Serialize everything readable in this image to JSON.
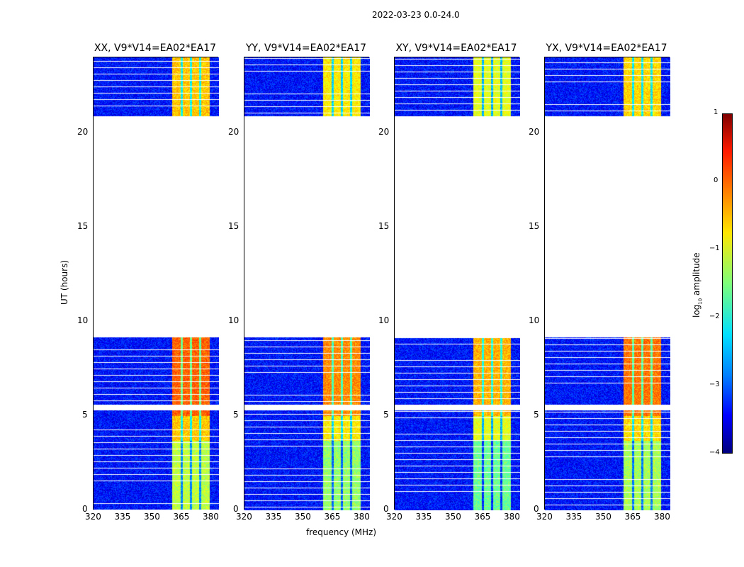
{
  "chart_data": {
    "type": "heatmap",
    "suptitle": "2022-03-23 0.0-24.0",
    "xlabel": "frequency (MHz)",
    "ylabel": "UT (hours)",
    "xlim": [
      320,
      384
    ],
    "ylim": [
      0,
      24
    ],
    "xticks": [
      "320",
      "335",
      "350",
      "365",
      "380"
    ],
    "yticks": [
      "0",
      "5",
      "10",
      "15",
      "20"
    ],
    "panels": [
      {
        "title": "XX, V9*V14=EA02*EA17",
        "band_level": -0.6
      },
      {
        "title": "YY, V9*V14=EA02*EA17",
        "band_level": -0.8
      },
      {
        "title": "XY, V9*V14=EA02*EA17",
        "band_level": -1.0
      },
      {
        "title": "YX, V9*V14=EA02*EA17",
        "band_level": -0.7
      }
    ],
    "data_time_ranges_hours": [
      [
        0,
        5.3
      ],
      [
        5.6,
        9.2
      ],
      [
        20.9,
        24
      ]
    ],
    "band_mhz": [
      360,
      379
    ],
    "background_level": -3.3,
    "colorbar": {
      "label": "log10 amplitude",
      "range": [
        -4,
        1
      ],
      "ticks": [
        "1",
        "0",
        "−1",
        "−2",
        "−3",
        "−4"
      ]
    }
  }
}
